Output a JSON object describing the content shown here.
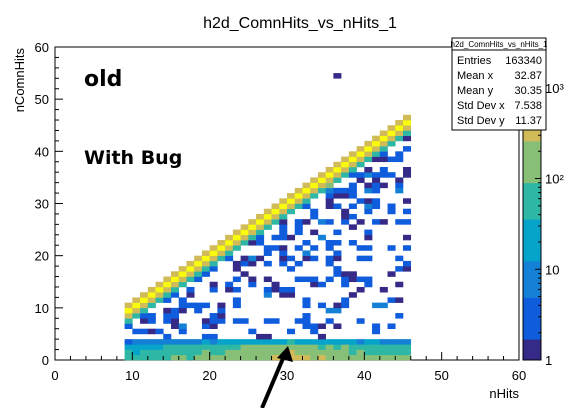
{
  "chart_data": {
    "type": "heatmap",
    "title": "h2d_ComnHits_vs_nHits_1",
    "xlabel": "nHits",
    "ylabel": "nComnHits",
    "xlim": [
      0,
      60
    ],
    "ylim": [
      0,
      60
    ],
    "x_ticks": [
      "0",
      "10",
      "20",
      "30",
      "40",
      "50",
      "60"
    ],
    "y_ticks": [
      "0",
      "10",
      "20",
      "30",
      "40",
      "50",
      "60"
    ],
    "z_scale": "log",
    "z_ticks": [
      "1",
      "10",
      "10²",
      "10³"
    ],
    "palette": [
      "#352a87",
      "#0f5cdd",
      "#1481d6",
      "#06a4ca",
      "#2eb7a4",
      "#87bf77",
      "#d1bb59",
      "#fec832",
      "#f9fb0e"
    ],
    "annotations": [
      "old",
      "With Bug"
    ],
    "stats_box": {
      "title": "h2d_ComnHits_vs_nHits_1",
      "rows": [
        {
          "label": "Entries",
          "value": "163340"
        },
        {
          "label": "Mean x",
          "value": "32.87"
        },
        {
          "label": "Mean y",
          "value": "30.35"
        },
        {
          "label": "Std Dev x",
          "value": "7.538"
        },
        {
          "label": "Std Dev y",
          "value": "11.37"
        }
      ]
    },
    "regions": [
      {
        "name": "diagonal band",
        "x_range": [
          9,
          46
        ],
        "y_relation": "y ≈ x",
        "level": "high (10³)"
      },
      {
        "name": "low band",
        "x_range": [
          9,
          46
        ],
        "y_range": [
          0,
          4
        ],
        "level": "medium (10²)"
      },
      {
        "name": "sparse triangle",
        "x_range": [
          9,
          46
        ],
        "y_range": [
          4,
          "x"
        ],
        "level": "low (1–10)"
      }
    ]
  }
}
